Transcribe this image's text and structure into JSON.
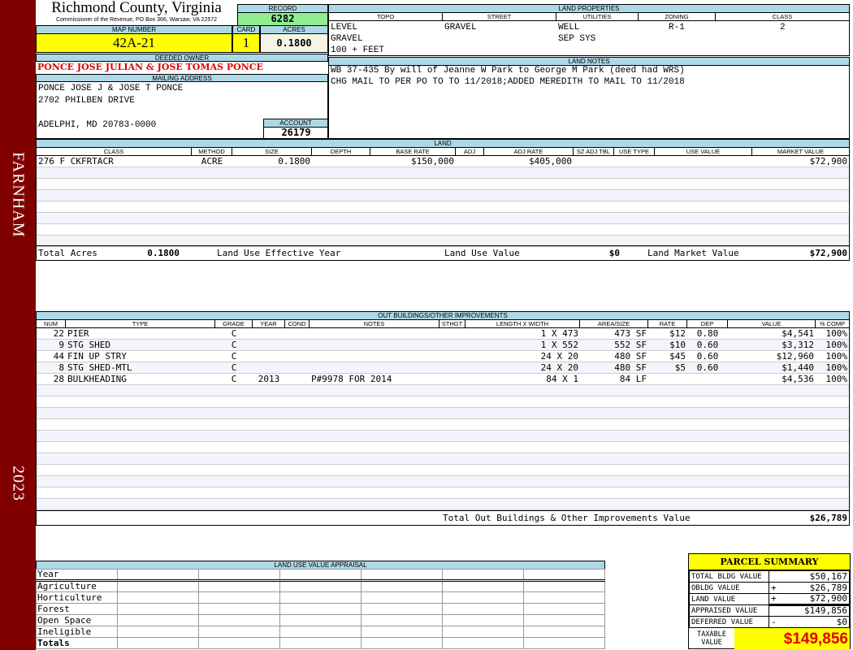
{
  "sidebar": {
    "district": "FARNHAM",
    "year": "2023",
    "color": "#800000"
  },
  "header": {
    "county": "Richmond County, Virginia",
    "office": "Commissioner of the Revenue, PO Box 366, Warsaw, VA 22572"
  },
  "record": {
    "label": "RECORD",
    "value": "6282"
  },
  "map": {
    "label": "MAP NUMBER",
    "value": "42A-21"
  },
  "card": {
    "label": "CARD",
    "value": "1"
  },
  "acres": {
    "label": "ACRES",
    "value": "0.1800"
  },
  "owner": {
    "label": "DEEDED OWNER",
    "value": "PONCE JOSE JULIAN & JOSE TOMAS PONCE"
  },
  "mailing": {
    "label": "MAILING ADDRESS",
    "line1": "PONCE JOSE J & JOSE T PONCE",
    "line2": "2702 PHILBEN DRIVE",
    "line3": "ADELPHI, MD 20783-0000"
  },
  "account": {
    "label": "ACCOUNT",
    "value": "26179"
  },
  "land_properties": {
    "label": "LAND PROPERTIES",
    "headers": [
      "TOPO",
      "STREET",
      "UTILITIES",
      "ZONING",
      "CLASS"
    ],
    "topo": [
      "LEVEL",
      "GRAVEL",
      "100 + FEET"
    ],
    "street": [
      "GRAVEL"
    ],
    "utilities": [
      "WELL",
      "SEP SYS"
    ],
    "zoning": [
      "R-1"
    ],
    "class": [
      "2"
    ]
  },
  "land_notes": {
    "label": "LAND NOTES",
    "lines": [
      "WB 37-435 By will of Jeanne W Park to George M Park (deed had WRS)",
      "CHG MAIL TO PER PO TO TO 11/2018;ADDED MEREDITH TO MAIL TO 11/2018"
    ]
  },
  "land": {
    "label": "LAND",
    "headers": [
      "CLASS",
      "METHOD",
      "SIZE",
      "DEPTH",
      "BASE RATE",
      "ADJ",
      "ADJ RATE",
      "SZ ADJ TBL",
      "USE TYPE",
      "USE VALUE",
      "MARKET VALUE"
    ],
    "rows": [
      [
        "276 F CKFRTACR",
        "ACRE",
        "0.1800",
        "",
        "$150,000",
        "",
        "$405,000",
        "",
        "",
        "",
        "$72,900"
      ]
    ],
    "totals": {
      "acres_label": "Total Acres",
      "acres": "0.1800",
      "year_label": "Land Use Effective Year",
      "year": "",
      "use_label": "Land Use Value",
      "use": "$0",
      "market_label": "Land Market Value",
      "market": "$72,900"
    }
  },
  "outbuildings": {
    "label": "OUT BUILDINGS/OTHER IMPROVEMENTS",
    "headers": [
      "NUM",
      "TYPE",
      "GRADE",
      "YEAR",
      "COND",
      "NOTES",
      "STHGT",
      "LENGTH X WIDTH",
      "AREA/SIZE",
      "RATE",
      "DEP",
      "VALUE",
      "% COMP"
    ],
    "rows": [
      [
        "22",
        "PIER",
        "C",
        "",
        "",
        "",
        "",
        "1 X 473",
        "473 SF",
        "$12",
        "0.80",
        "$4,541",
        "100%"
      ],
      [
        "9",
        "STG SHED",
        "C",
        "",
        "",
        "",
        "",
        "1 X 552",
        "552 SF",
        "$10",
        "0.60",
        "$3,312",
        "100%"
      ],
      [
        "44",
        "FIN UP STRY",
        "C",
        "",
        "",
        "",
        "",
        "24 X 20",
        "480 SF",
        "$45",
        "0.60",
        "$12,960",
        "100%"
      ],
      [
        "8",
        "STG SHED-MTL",
        "C",
        "",
        "",
        "",
        "",
        "24 X 20",
        "480 SF",
        "$5",
        "0.60",
        "$1,440",
        "100%"
      ],
      [
        "28",
        "BULKHEADING",
        "C",
        "2013",
        "",
        "P#9978 FOR 2014",
        "",
        "84 X 1",
        "84 LF",
        "",
        "",
        "$4,536",
        "100%"
      ]
    ],
    "total_label": "Total Out Buildings & Other Improvements Value",
    "total": "$26,789"
  },
  "land_use": {
    "label": "LAND USE VALUE APPRAISAL",
    "year_label": "Year",
    "rows": [
      "Agriculture",
      "Horticulture",
      "Forest",
      "Open Space",
      "Ineligible"
    ],
    "totals_label": "Totals"
  },
  "parcel_summary": {
    "title": "PARCEL SUMMARY",
    "rows": [
      {
        "label": "TOTAL BLDG VALUE",
        "op": "",
        "value": "$50,167"
      },
      {
        "label": "OBLDG VALUE",
        "op": "+",
        "value": "$26,789"
      },
      {
        "label": "LAND VALUE",
        "op": "+",
        "value": "$72,900"
      },
      {
        "label": "APPRAISED VALUE",
        "op": "",
        "value": "$149,856"
      },
      {
        "label": "DEFERRED VALUE",
        "op": "-",
        "value": "$0"
      }
    ],
    "taxable_label": "TAXABLE VALUE",
    "taxable": "$149,856"
  }
}
